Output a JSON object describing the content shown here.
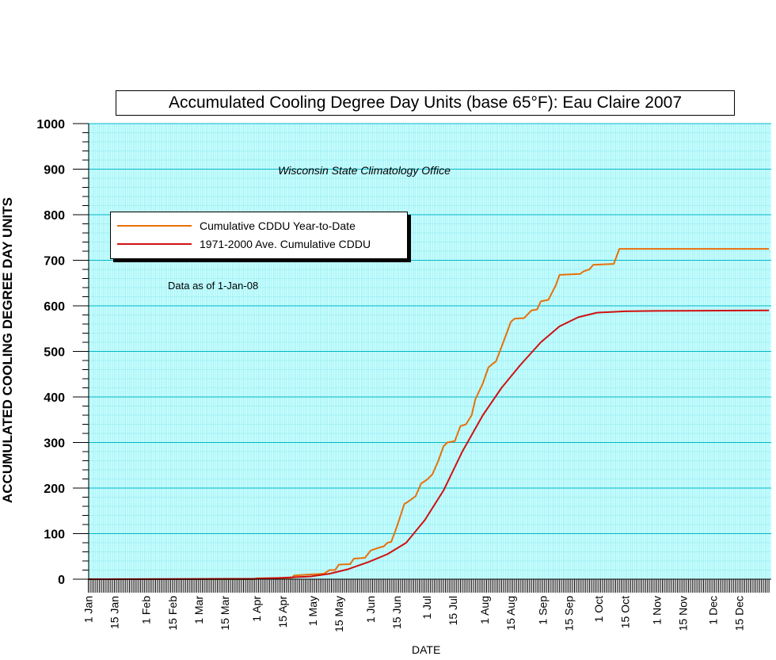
{
  "chart_data": {
    "type": "line",
    "title": "Accumulated Cooling Degree Day Units (base 65°F): Eau Claire 2007",
    "subtitle": "Wisconsin State Climatology Office",
    "annotation": "Data as of 1-Jan-08",
    "xlabel": "DATE",
    "ylabel": "ACCUMULATED COOLING DEGREE DAY UNITS",
    "ylim": [
      0,
      1000
    ],
    "y_ticks": [
      0,
      100,
      200,
      300,
      400,
      500,
      600,
      700,
      800,
      900,
      1000
    ],
    "x_ticks": [
      {
        "label": "1 Jan",
        "date": "2007-01-01"
      },
      {
        "label": "15 Jan",
        "date": "2007-01-15"
      },
      {
        "label": "1 Feb",
        "date": "2007-02-01"
      },
      {
        "label": "15 Feb",
        "date": "2007-02-15"
      },
      {
        "label": "1 Mar",
        "date": "2007-03-01"
      },
      {
        "label": "15 Mar",
        "date": "2007-03-15"
      },
      {
        "label": "1 Apr",
        "date": "2007-04-01"
      },
      {
        "label": "15 Apr",
        "date": "2007-04-15"
      },
      {
        "label": "1 May",
        "date": "2007-05-01"
      },
      {
        "label": "15 May",
        "date": "2007-05-15"
      },
      {
        "label": "1 Jun",
        "date": "2007-06-01"
      },
      {
        "label": "15 Jun",
        "date": "2007-06-15"
      },
      {
        "label": "1 Jul",
        "date": "2007-07-01"
      },
      {
        "label": "15 Jul",
        "date": "2007-07-15"
      },
      {
        "label": "1 Aug",
        "date": "2007-08-01"
      },
      {
        "label": "15 Aug",
        "date": "2007-08-15"
      },
      {
        "label": "1 Sep",
        "date": "2007-09-01"
      },
      {
        "label": "15 Sep",
        "date": "2007-09-15"
      },
      {
        "label": "1 Oct",
        "date": "2007-10-01"
      },
      {
        "label": "15 Oct",
        "date": "2007-10-15"
      },
      {
        "label": "1 Nov",
        "date": "2007-11-01"
      },
      {
        "label": "15 Nov",
        "date": "2007-11-15"
      },
      {
        "label": "1 Dec",
        "date": "2007-12-01"
      },
      {
        "label": "15 Dec",
        "date": "2007-12-15"
      }
    ],
    "grid": true,
    "legend_position": "upper-left",
    "plot_background": "#ccffff",
    "grid_color": "#00b8c8",
    "minor_grid_color": "#8ee8f0",
    "series": [
      {
        "name": "Cumulative CDDU Year-to-Date",
        "color": "#e8700a",
        "points": [
          [
            "2007-01-01",
            0
          ],
          [
            "2007-03-31",
            0
          ],
          [
            "2007-04-01",
            2
          ],
          [
            "2007-04-20",
            3
          ],
          [
            "2007-04-21",
            8
          ],
          [
            "2007-04-28",
            10
          ],
          [
            "2007-05-07",
            12
          ],
          [
            "2007-05-10",
            20
          ],
          [
            "2007-05-13",
            20
          ],
          [
            "2007-05-15",
            32
          ],
          [
            "2007-05-21",
            33
          ],
          [
            "2007-05-23",
            45
          ],
          [
            "2007-05-29",
            47
          ],
          [
            "2007-06-01",
            63
          ],
          [
            "2007-06-06",
            70
          ],
          [
            "2007-06-08",
            72
          ],
          [
            "2007-06-10",
            80
          ],
          [
            "2007-06-12",
            82
          ],
          [
            "2007-06-15",
            115
          ],
          [
            "2007-06-19",
            165
          ],
          [
            "2007-06-21",
            170
          ],
          [
            "2007-06-25",
            182
          ],
          [
            "2007-06-28",
            210
          ],
          [
            "2007-07-01",
            218
          ],
          [
            "2007-07-04",
            230
          ],
          [
            "2007-07-07",
            258
          ],
          [
            "2007-07-10",
            292
          ],
          [
            "2007-07-12",
            300
          ],
          [
            "2007-07-16",
            303
          ],
          [
            "2007-07-19",
            336
          ],
          [
            "2007-07-22",
            340
          ],
          [
            "2007-07-25",
            360
          ],
          [
            "2007-07-27",
            395
          ],
          [
            "2007-07-31",
            430
          ],
          [
            "2007-08-03",
            465
          ],
          [
            "2007-08-05",
            472
          ],
          [
            "2007-08-07",
            478
          ],
          [
            "2007-08-10",
            510
          ],
          [
            "2007-08-15",
            565
          ],
          [
            "2007-08-17",
            572
          ],
          [
            "2007-08-22",
            573
          ],
          [
            "2007-08-26",
            590
          ],
          [
            "2007-08-29",
            592
          ],
          [
            "2007-08-31",
            610
          ],
          [
            "2007-09-04",
            613
          ],
          [
            "2007-09-08",
            645
          ],
          [
            "2007-09-10",
            668
          ],
          [
            "2007-09-21",
            670
          ],
          [
            "2007-09-23",
            676
          ],
          [
            "2007-09-26",
            680
          ],
          [
            "2007-09-28",
            690
          ],
          [
            "2007-10-09",
            692
          ],
          [
            "2007-10-12",
            725
          ],
          [
            "2007-12-31",
            725
          ]
        ]
      },
      {
        "name": "1971-2000 Ave. Cumulative CDDU",
        "color": "#d01010",
        "points": [
          [
            "2007-01-01",
            0
          ],
          [
            "2007-03-31",
            1
          ],
          [
            "2007-04-15",
            3
          ],
          [
            "2007-04-30",
            6
          ],
          [
            "2007-05-10",
            12
          ],
          [
            "2007-05-20",
            22
          ],
          [
            "2007-05-31",
            38
          ],
          [
            "2007-06-10",
            55
          ],
          [
            "2007-06-20",
            80
          ],
          [
            "2007-06-30",
            130
          ],
          [
            "2007-07-10",
            195
          ],
          [
            "2007-07-20",
            280
          ],
          [
            "2007-07-31",
            360
          ],
          [
            "2007-08-10",
            420
          ],
          [
            "2007-08-20",
            470
          ],
          [
            "2007-08-31",
            520
          ],
          [
            "2007-09-10",
            555
          ],
          [
            "2007-09-20",
            575
          ],
          [
            "2007-09-30",
            585
          ],
          [
            "2007-10-15",
            588
          ],
          [
            "2007-10-31",
            589
          ],
          [
            "2007-12-31",
            590
          ]
        ]
      }
    ]
  }
}
